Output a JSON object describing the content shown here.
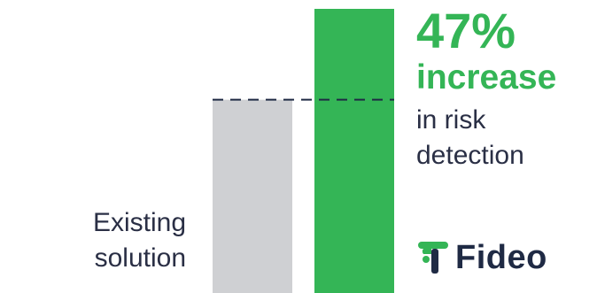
{
  "chart_data": {
    "type": "bar",
    "title": "",
    "xlabel": "",
    "ylabel": "",
    "ylim": [
      0,
      147
    ],
    "categories": [
      "Existing solution",
      ""
    ],
    "values": [
      100,
      147
    ],
    "colors": [
      "#cfd0d3",
      "#34b556"
    ],
    "annotations": {
      "reference_line": {
        "value": 100,
        "style": "dashed",
        "color": "#1f2a44"
      }
    }
  },
  "labels": {
    "existing": [
      "Existing",
      "solution"
    ]
  },
  "stat": {
    "value": "47%",
    "word": "increase",
    "description_lines": [
      "in risk",
      "detection"
    ]
  },
  "brand": {
    "name": "Fideo",
    "logo_icon": "fideo-logo-icon"
  },
  "colors": {
    "accent": "#34b556",
    "bar_baseline": "#cfd0d3",
    "text": "#2a2f45",
    "brand_navy": "#1f2a44"
  }
}
